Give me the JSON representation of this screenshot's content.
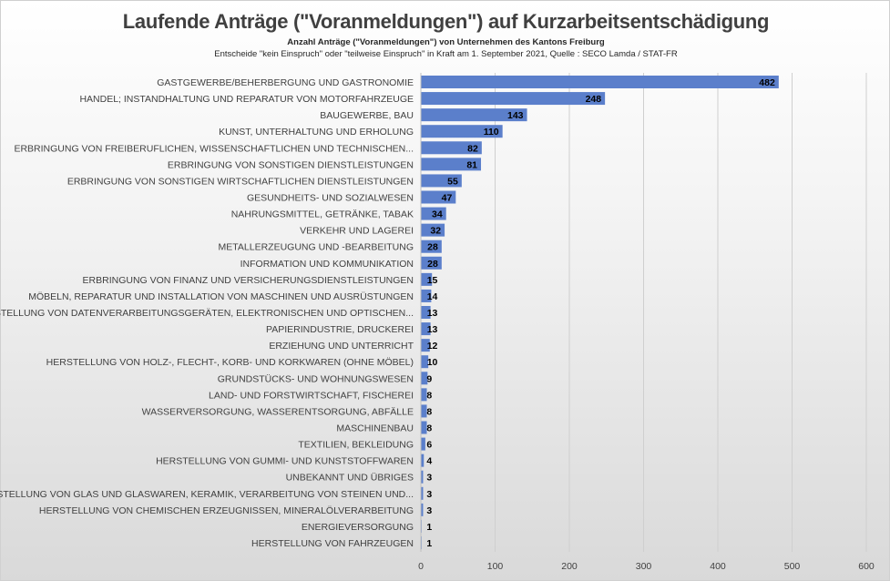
{
  "chart_data": {
    "type": "bar",
    "orientation": "horizontal",
    "title": "Laufende Anträge (\"Voranmeldungen\") auf Kurzarbeitsentschädigung",
    "subtitle": "Anzahl Anträge (\"Voranmeldungen\") von Unternehmen des Kantons Freiburg",
    "note": "Entscheide \"kein Einspruch\" oder \"teilweise Einspruch\" in Kraft am 1. September 2021, Quelle : SECO Lamda / STAT-FR",
    "xlim": [
      0,
      600
    ],
    "xticks": [
      0,
      100,
      200,
      300,
      400,
      500,
      600
    ],
    "grid": true,
    "bar_color": "#5b7fcb",
    "categories": [
      "GASTGEWERBE/BEHERBERGUNG UND GASTRONOMIE",
      "HANDEL; INSTANDHALTUNG UND REPARATUR VON MOTORFAHRZEUGE",
      "BAUGEWERBE, BAU",
      "KUNST, UNTERHALTUNG UND ERHOLUNG",
      "ERBRINGUNG VON FREIBERUFLICHEN, WISSENSCHAFTLICHEN UND TECHNISCHEN...",
      "ERBRINGUNG VON SONSTIGEN DIENSTLEISTUNGEN",
      "ERBRINGUNG VON SONSTIGEN WIRTSCHAFTLICHEN DIENSTLEISTUNGEN",
      "GESUNDHEITS- UND SOZIALWESEN",
      "NAHRUNGSMITTEL, GETRÄNKE, TABAK",
      "VERKEHR UND LAGEREI",
      "METALLERZEUGUNG UND -BEARBEITUNG",
      "INFORMATION UND KOMMUNIKATION",
      "ERBRINGUNG VON FINANZ UND VERSICHERUNGSDIENSTLEISTUNGEN",
      "MÖBELN, REPARATUR UND INSTALLATION VON MASCHINEN UND AUSRÜSTUNGEN",
      "HERSTELLUNG VON DATENVERARBEITUNGSGERÄTEN, ELEKTRONISCHEN UND OPTISCHEN...",
      "PAPIERINDUSTRIE, DRUCKEREI",
      "ERZIEHUNG UND UNTERRICHT",
      "HERSTELLUNG VON HOLZ-, FLECHT-, KORB- UND KORKWAREN (OHNE MÖBEL)",
      "GRUNDSTÜCKS- UND WOHNUNGSWESEN",
      "LAND- UND FORSTWIRTSCHAFT, FISCHEREI",
      "WASSERVERSORGUNG, WASSERENTSORGUNG, ABFÄLLE",
      "MASCHINENBAU",
      "TEXTILIEN, BEKLEIDUNG",
      "HERSTELLUNG VON GUMMI- UND KUNSTSTOFFWAREN",
      "UNBEKANNT UND ÜBRIGES",
      "HERSTELLUNG VON GLAS UND GLASWAREN, KERAMIK, VERARBEITUNG VON STEINEN UND...",
      "HERSTELLUNG VON CHEMISCHEN ERZEUGNISSEN, MINERALÖLVERARBEITUNG",
      "ENERGIEVERSORGUNG",
      "HERSTELLUNG VON FAHRZEUGEN"
    ],
    "values": [
      482,
      248,
      143,
      110,
      82,
      81,
      55,
      47,
      34,
      32,
      28,
      28,
      15,
      14,
      13,
      13,
      12,
      10,
      9,
      8,
      8,
      8,
      6,
      4,
      3,
      3,
      3,
      1,
      1
    ]
  }
}
